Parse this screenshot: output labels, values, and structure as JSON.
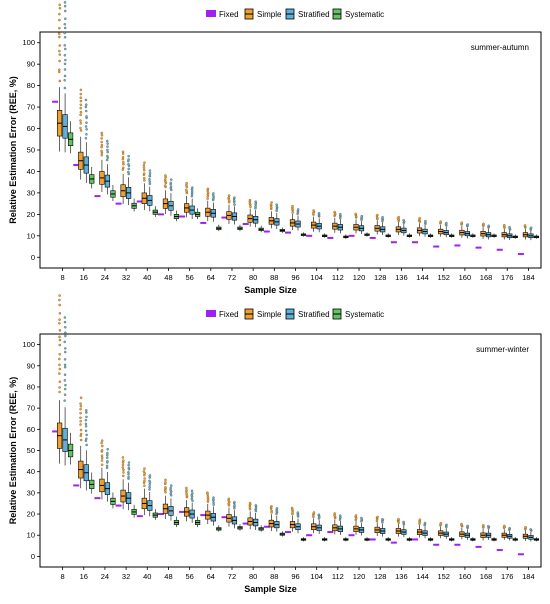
{
  "figure": {
    "legend_labels": [
      "Fixed",
      "Simple",
      "Stratified",
      "Systematic"
    ],
    "colors": {
      "Fixed": "#a020f0",
      "Simple": "#f0a030",
      "Stratified": "#5fb0d8",
      "Systematic": "#63c463"
    }
  },
  "chart_data": [
    {
      "type": "boxplot",
      "annotation": "summer-autumn",
      "xlabel": "Sample Size",
      "ylabel": "Relative Estimation Error (REE, %)",
      "ylim": [
        -5,
        105
      ],
      "yticks": [
        0,
        10,
        20,
        30,
        40,
        50,
        60,
        70,
        80,
        90,
        100
      ],
      "categories": [
        8,
        16,
        24,
        32,
        40,
        48,
        56,
        64,
        72,
        80,
        88,
        96,
        104,
        112,
        120,
        128,
        136,
        144,
        152,
        160,
        168,
        176,
        184
      ],
      "legend": [
        "Fixed",
        "Simple",
        "Stratified",
        "Systematic"
      ],
      "fixed_values": [
        72.5,
        43.0,
        28.5,
        25.0,
        26.0,
        20.0,
        19.0,
        16.0,
        18.5,
        15.5,
        12.0,
        11.5,
        10.0,
        9.0,
        10.0,
        9.0,
        7.0,
        7.0,
        5.0,
        5.5,
        4.5,
        3.5,
        1.5
      ],
      "series": [
        {
          "name": "Simple",
          "medians": [
            62.5,
            45,
            37,
            31,
            27.5,
            25,
            23,
            21,
            19.5,
            18,
            17,
            16,
            15,
            14.5,
            14,
            13.5,
            13,
            12.5,
            12,
            11.5,
            11,
            10.5,
            10.5
          ],
          "spreads": [
            6,
            4,
            3,
            2.8,
            2.5,
            2.2,
            2,
            1.9,
            1.8,
            1.7,
            1.6,
            1.5,
            1.4,
            1.4,
            1.3,
            1.3,
            1.2,
            1.2,
            1.1,
            1.1,
            1.1,
            1.0,
            1.0
          ]
        },
        {
          "name": "Stratified",
          "medians": [
            61,
            43,
            35.5,
            30,
            26.5,
            24,
            22,
            20.5,
            19,
            17.5,
            16.5,
            15.5,
            14.5,
            14,
            13.5,
            13,
            12.5,
            12,
            11.5,
            11,
            10.5,
            10,
            10
          ],
          "spreads": [
            5.5,
            3.8,
            2.8,
            2.6,
            2.3,
            2.1,
            1.9,
            1.8,
            1.7,
            1.6,
            1.5,
            1.4,
            1.3,
            1.3,
            1.2,
            1.2,
            1.1,
            1.1,
            1.0,
            1.0,
            1.0,
            0.9,
            0.9
          ]
        },
        {
          "name": "Systematic",
          "medians": [
            55,
            36.5,
            29.5,
            24,
            21,
            19,
            20,
            13.5,
            13.5,
            13,
            12.5,
            10.5,
            10,
            9.5,
            10.5,
            10,
            10,
            10,
            10,
            10,
            10,
            9.5,
            9.5
          ],
          "spreads": [
            3,
            2,
            1.5,
            1.2,
            1,
            1,
            1,
            0.6,
            0.6,
            0.6,
            0.5,
            0.4,
            0.4,
            0.4,
            0.4,
            0.4,
            0.4,
            0.4,
            0.4,
            0.4,
            0.4,
            0.4,
            0.4
          ]
        }
      ]
    },
    {
      "type": "boxplot",
      "annotation": "summer-winter",
      "xlabel": "Sample Size",
      "ylabel": "Relative Estimation Error (REE, %)",
      "ylim": [
        -5,
        105
      ],
      "yticks": [
        0,
        10,
        20,
        30,
        40,
        50,
        60,
        70,
        80,
        90,
        100
      ],
      "categories": [
        8,
        16,
        24,
        32,
        40,
        48,
        56,
        64,
        72,
        80,
        88,
        96,
        104,
        112,
        120,
        128,
        136,
        144,
        152,
        160,
        168,
        176,
        184
      ],
      "legend": [
        "Fixed",
        "Simple",
        "Stratified",
        "Systematic"
      ],
      "fixed_values": [
        59.0,
        33.5,
        27.5,
        24.0,
        19.0,
        20.0,
        21.0,
        19.5,
        18.5,
        15.5,
        14.0,
        11.5,
        10.0,
        11.5,
        10.0,
        8.0,
        6.5,
        8.0,
        5.5,
        5.5,
        4.5,
        3.0,
        1.0
      ],
      "series": [
        {
          "name": "Simple",
          "medians": [
            57,
            41,
            33.5,
            28.5,
            25,
            22.5,
            21,
            19.5,
            18,
            16.5,
            15.5,
            15,
            14,
            13.5,
            13,
            12.5,
            12,
            11.5,
            11,
            10.5,
            10,
            10,
            9.5
          ],
          "spreads": [
            6,
            4,
            3,
            2.8,
            2.5,
            2.2,
            2,
            1.9,
            1.8,
            1.7,
            1.6,
            1.5,
            1.4,
            1.4,
            1.3,
            1.3,
            1.2,
            1.2,
            1.1,
            1.1,
            1.1,
            1.0,
            1.0
          ]
        },
        {
          "name": "Stratified",
          "medians": [
            55,
            39.5,
            32,
            27.5,
            24,
            21.5,
            20,
            18.5,
            17,
            16,
            15,
            14,
            13.5,
            13,
            12.5,
            12,
            11.5,
            11,
            10.5,
            10,
            10,
            9.5,
            9
          ],
          "spreads": [
            5.5,
            3.8,
            2.8,
            2.6,
            2.3,
            2.1,
            1.9,
            1.8,
            1.7,
            1.6,
            1.5,
            1.4,
            1.3,
            1.3,
            1.2,
            1.2,
            1.1,
            1.1,
            1.0,
            1.0,
            1.0,
            0.9,
            0.9
          ]
        },
        {
          "name": "Systematic",
          "medians": [
            50,
            34,
            26,
            21,
            19.5,
            16,
            16,
            13,
            13.5,
            13,
            10.5,
            8,
            8,
            8,
            8,
            8,
            8,
            8,
            8,
            8,
            8,
            8,
            8
          ],
          "spreads": [
            3,
            2,
            1.5,
            1.2,
            1,
            1,
            1,
            0.6,
            0.6,
            0.6,
            0.5,
            0.4,
            0.4,
            0.4,
            0.4,
            0.4,
            0.4,
            0.4,
            0.4,
            0.4,
            0.4,
            0.4,
            0.4
          ]
        }
      ]
    }
  ]
}
